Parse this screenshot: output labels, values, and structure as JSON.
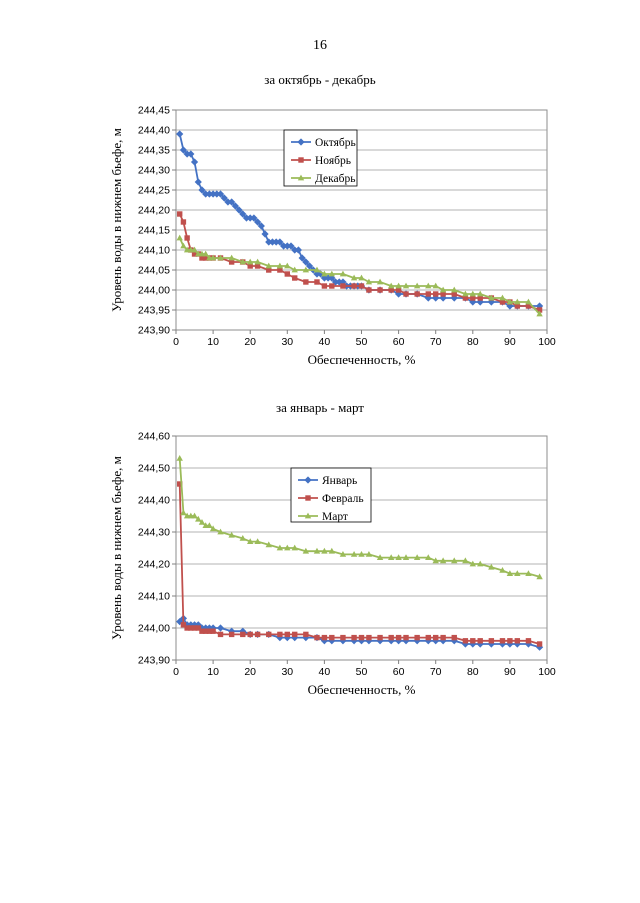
{
  "page": {
    "number": "16"
  },
  "chart_data": [
    {
      "type": "line",
      "title": "за октябрь - декабрь",
      "xlabel": "Обеспеченность, %",
      "ylabel": "Уровень воды в нижнем бьефе, м",
      "xlim": [
        0,
        100
      ],
      "ylim": [
        243.9,
        244.45
      ],
      "xticks": [
        "0",
        "10",
        "20",
        "30",
        "40",
        "50",
        "60",
        "70",
        "80",
        "90",
        "100"
      ],
      "yticks": [
        "243,90",
        "243,95",
        "244,00",
        "244,05",
        "244,10",
        "244,15",
        "244,20",
        "244,25",
        "244,30",
        "244,35",
        "244,40",
        "244,45"
      ],
      "grid": "horizontal",
      "legend": "inside-top-center",
      "series": [
        {
          "name": "Октябрь",
          "color": "#4472c4",
          "marker": "diamond",
          "x": [
            1,
            2,
            3,
            4,
            5,
            6,
            7,
            8,
            9,
            10,
            11,
            12,
            13,
            14,
            15,
            16,
            17,
            18,
            19,
            20,
            21,
            22,
            23,
            24,
            25,
            26,
            27,
            28,
            29,
            30,
            31,
            32,
            33,
            34,
            35,
            36,
            37,
            38,
            39,
            40,
            41,
            42,
            43,
            44,
            45,
            46,
            47,
            48,
            49,
            50,
            52,
            55,
            58,
            60,
            62,
            65,
            68,
            70,
            72,
            75,
            78,
            80,
            82,
            85,
            88,
            90,
            92,
            95,
            98
          ],
          "y": [
            244.39,
            244.35,
            244.34,
            244.34,
            244.32,
            244.27,
            244.25,
            244.24,
            244.24,
            244.24,
            244.24,
            244.24,
            244.23,
            244.22,
            244.22,
            244.21,
            244.2,
            244.19,
            244.18,
            244.18,
            244.18,
            244.17,
            244.16,
            244.14,
            244.12,
            244.12,
            244.12,
            244.12,
            244.11,
            244.11,
            244.11,
            244.1,
            244.1,
            244.08,
            244.07,
            244.06,
            244.05,
            244.04,
            244.04,
            244.03,
            244.03,
            244.03,
            244.02,
            244.02,
            244.02,
            244.01,
            244.01,
            244.01,
            244.01,
            244.01,
            244.0,
            244.0,
            244.0,
            243.99,
            243.99,
            243.99,
            243.98,
            243.98,
            243.98,
            243.98,
            243.98,
            243.97,
            243.97,
            243.97,
            243.97,
            243.96,
            243.96,
            243.96,
            243.96
          ]
        },
        {
          "name": "Ноябрь",
          "color": "#c0504d",
          "marker": "square",
          "x": [
            1,
            2,
            3,
            4,
            5,
            6,
            7,
            8,
            9,
            10,
            12,
            15,
            18,
            20,
            22,
            25,
            28,
            30,
            32,
            35,
            38,
            40,
            42,
            45,
            48,
            50,
            52,
            55,
            58,
            60,
            62,
            65,
            68,
            70,
            72,
            75,
            78,
            80,
            82,
            85,
            88,
            90,
            92,
            95,
            98
          ],
          "y": [
            244.19,
            244.17,
            244.13,
            244.1,
            244.09,
            244.09,
            244.08,
            244.08,
            244.08,
            244.08,
            244.08,
            244.07,
            244.07,
            244.06,
            244.06,
            244.05,
            244.05,
            244.04,
            244.03,
            244.02,
            244.02,
            244.01,
            244.01,
            244.01,
            244.01,
            244.01,
            244.0,
            244.0,
            244.0,
            244.0,
            243.99,
            243.99,
            243.99,
            243.99,
            243.99,
            243.99,
            243.98,
            243.98,
            243.98,
            243.98,
            243.97,
            243.97,
            243.96,
            243.96,
            243.95
          ]
        },
        {
          "name": "Декабрь",
          "color": "#9bbb59",
          "marker": "triangle",
          "x": [
            1,
            2,
            3,
            4,
            5,
            6,
            7,
            8,
            9,
            10,
            12,
            15,
            18,
            20,
            22,
            25,
            28,
            30,
            32,
            35,
            38,
            40,
            42,
            45,
            48,
            50,
            52,
            55,
            58,
            60,
            62,
            65,
            68,
            70,
            72,
            75,
            78,
            80,
            82,
            85,
            88,
            90,
            92,
            95,
            98
          ],
          "y": [
            244.13,
            244.11,
            244.1,
            244.1,
            244.1,
            244.09,
            244.09,
            244.09,
            244.08,
            244.08,
            244.08,
            244.08,
            244.07,
            244.07,
            244.07,
            244.06,
            244.06,
            244.06,
            244.05,
            244.05,
            244.05,
            244.04,
            244.04,
            244.04,
            244.03,
            244.03,
            244.02,
            244.02,
            244.01,
            244.01,
            244.01,
            244.01,
            244.01,
            244.01,
            244.0,
            244.0,
            243.99,
            243.99,
            243.99,
            243.98,
            243.98,
            243.97,
            243.97,
            243.97,
            243.94
          ]
        }
      ]
    },
    {
      "type": "line",
      "title": "за январь - март",
      "xlabel": "Обеспеченность, %",
      "ylabel": "Уровень воды в нижнем бьефе, м",
      "xlim": [
        0,
        100
      ],
      "ylim": [
        243.9,
        244.6
      ],
      "xticks": [
        "0",
        "10",
        "20",
        "30",
        "40",
        "50",
        "60",
        "70",
        "80",
        "90",
        "100"
      ],
      "yticks": [
        "243,90",
        "244,00",
        "244,10",
        "244,20",
        "244,30",
        "244,40",
        "244,50",
        "244,60"
      ],
      "grid": "horizontal",
      "legend": "inside-top-center",
      "series": [
        {
          "name": "Январь",
          "color": "#4472c4",
          "marker": "diamond",
          "x": [
            1,
            2,
            3,
            4,
            5,
            6,
            7,
            8,
            9,
            10,
            12,
            15,
            18,
            20,
            22,
            25,
            28,
            30,
            32,
            35,
            38,
            40,
            42,
            45,
            48,
            50,
            52,
            55,
            58,
            60,
            62,
            65,
            68,
            70,
            72,
            75,
            78,
            80,
            82,
            85,
            88,
            90,
            92,
            95,
            98
          ],
          "y": [
            244.02,
            244.03,
            244.01,
            244.01,
            244.01,
            244.01,
            244.0,
            244.0,
            244.0,
            244.0,
            244.0,
            243.99,
            243.99,
            243.98,
            243.98,
            243.98,
            243.97,
            243.97,
            243.97,
            243.97,
            243.97,
            243.96,
            243.96,
            243.96,
            243.96,
            243.96,
            243.96,
            243.96,
            243.96,
            243.96,
            243.96,
            243.96,
            243.96,
            243.96,
            243.96,
            243.96,
            243.95,
            243.95,
            243.95,
            243.95,
            243.95,
            243.95,
            243.95,
            243.95,
            243.94
          ]
        },
        {
          "name": "Февраль",
          "color": "#c0504d",
          "marker": "square",
          "x": [
            1,
            2,
            3,
            4,
            5,
            6,
            7,
            8,
            9,
            10,
            12,
            15,
            18,
            20,
            22,
            25,
            28,
            30,
            32,
            35,
            38,
            40,
            42,
            45,
            48,
            50,
            52,
            55,
            58,
            60,
            62,
            65,
            68,
            70,
            72,
            75,
            78,
            80,
            82,
            85,
            88,
            90,
            92,
            95,
            98
          ],
          "y": [
            244.45,
            244.01,
            244.0,
            244.0,
            244.0,
            244.0,
            243.99,
            243.99,
            243.99,
            243.99,
            243.98,
            243.98,
            243.98,
            243.98,
            243.98,
            243.98,
            243.98,
            243.98,
            243.98,
            243.98,
            243.97,
            243.97,
            243.97,
            243.97,
            243.97,
            243.97,
            243.97,
            243.97,
            243.97,
            243.97,
            243.97,
            243.97,
            243.97,
            243.97,
            243.97,
            243.97,
            243.96,
            243.96,
            243.96,
            243.96,
            243.96,
            243.96,
            243.96,
            243.96,
            243.95
          ]
        },
        {
          "name": "Март",
          "color": "#9bbb59",
          "marker": "triangle",
          "x": [
            1,
            2,
            3,
            4,
            5,
            6,
            7,
            8,
            9,
            10,
            12,
            15,
            18,
            20,
            22,
            25,
            28,
            30,
            32,
            35,
            38,
            40,
            42,
            45,
            48,
            50,
            52,
            55,
            58,
            60,
            62,
            65,
            68,
            70,
            72,
            75,
            78,
            80,
            82,
            85,
            88,
            90,
            92,
            95,
            98
          ],
          "y": [
            244.53,
            244.36,
            244.35,
            244.35,
            244.35,
            244.34,
            244.33,
            244.32,
            244.32,
            244.31,
            244.3,
            244.29,
            244.28,
            244.27,
            244.27,
            244.26,
            244.25,
            244.25,
            244.25,
            244.24,
            244.24,
            244.24,
            244.24,
            244.23,
            244.23,
            244.23,
            244.23,
            244.22,
            244.22,
            244.22,
            244.22,
            244.22,
            244.22,
            244.21,
            244.21,
            244.21,
            244.21,
            244.2,
            244.2,
            244.19,
            244.18,
            244.17,
            244.17,
            244.17,
            244.16
          ]
        }
      ]
    }
  ]
}
